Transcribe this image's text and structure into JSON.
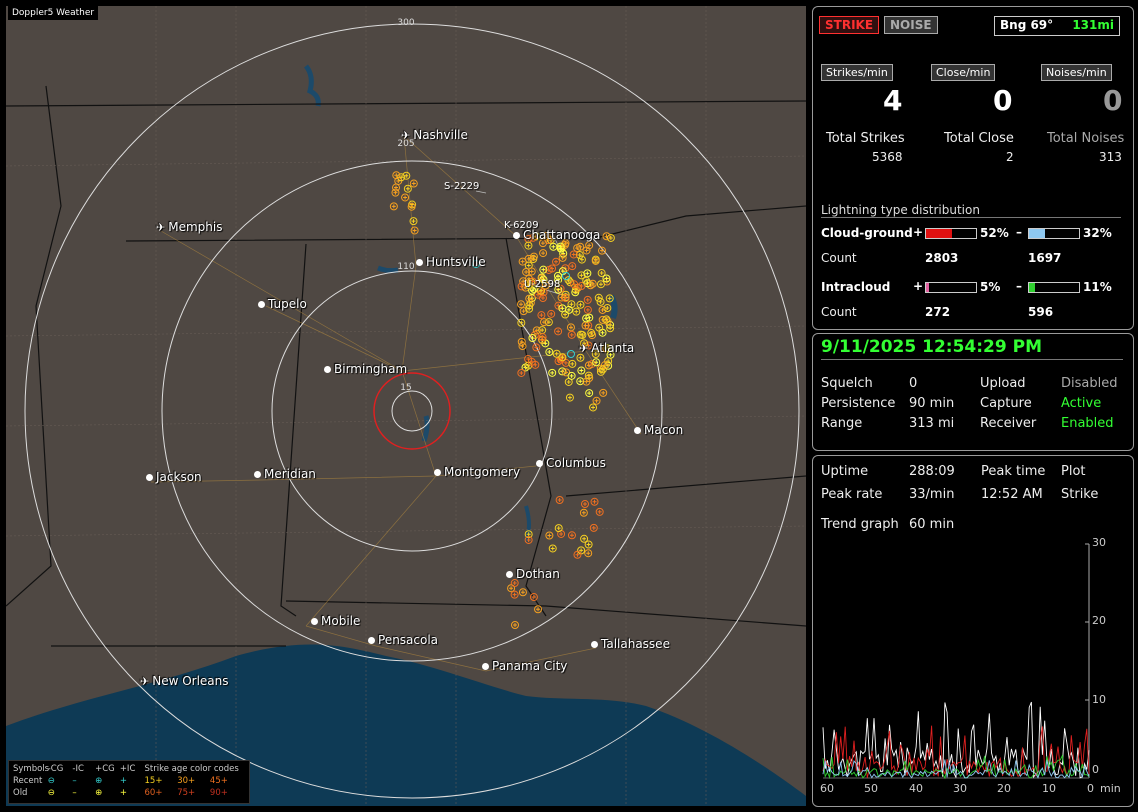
{
  "map": {
    "tag": "Doppler5 Weather",
    "range_labels": [
      "300",
      "205",
      "110",
      "15"
    ],
    "cities": [
      {
        "name": "Nashville",
        "kind": "air"
      },
      {
        "name": "Memphis",
        "kind": "air"
      },
      {
        "name": "Chattanooga",
        "kind": "dot"
      },
      {
        "name": "Huntsville",
        "kind": "dot"
      },
      {
        "name": "Tupelo",
        "kind": "dot"
      },
      {
        "name": "Birmingham",
        "kind": "dot"
      },
      {
        "name": "Atlanta",
        "kind": "air"
      },
      {
        "name": "Macon",
        "kind": "dot"
      },
      {
        "name": "Jackson",
        "kind": "dot"
      },
      {
        "name": "Meridian",
        "kind": "dot"
      },
      {
        "name": "Montgomery",
        "kind": "dot"
      },
      {
        "name": "Columbus",
        "kind": "dot"
      },
      {
        "name": "Dothan",
        "kind": "dot"
      },
      {
        "name": "Mobile",
        "kind": "dot"
      },
      {
        "name": "Pensacola",
        "kind": "dot"
      },
      {
        "name": "Tallahassee",
        "kind": "dot"
      },
      {
        "name": "Panama City",
        "kind": "dot"
      },
      {
        "name": "New Orleans",
        "kind": "air"
      }
    ],
    "storm_labels": [
      "S-2229",
      "K-6209",
      "U-2598"
    ],
    "legend": {
      "row1": [
        "Symbols",
        "-CG",
        "-IC",
        "+CG",
        "+IC",
        "Strike age color codes"
      ],
      "row2": [
        "Recent",
        "⊖",
        "–",
        "⊕",
        "+",
        "15+",
        "30+",
        "45+"
      ],
      "row3": [
        "Old",
        "⊖",
        "–",
        "⊕",
        "+",
        "60+",
        "75+",
        "90+"
      ]
    }
  },
  "status": {
    "strike_btn": "STRIKE",
    "noise_btn": "NOISE",
    "bearing": "Bng 69°",
    "distance": "131mi",
    "headers": [
      "Strikes/min",
      "Close/min",
      "Noises/min"
    ],
    "rates": [
      "4",
      "0",
      "0"
    ],
    "totals_labels": [
      "Total Strikes",
      "Total Close",
      "Total Noises"
    ],
    "totals": [
      "5368",
      "2",
      "313"
    ],
    "dist_title": "Lightning type distribution",
    "cg_label": "Cloud-ground",
    "cg_pos_pct": "52%",
    "cg_neg_pct": "32%",
    "count_label": "Count",
    "cg_pos_count": "2803",
    "cg_neg_count": "1697",
    "ic_label": "Intracloud",
    "ic_pos_pct": "5%",
    "ic_neg_pct": "11%",
    "ic_pos_count": "272",
    "ic_neg_count": "596",
    "plus": "+",
    "minus": "–",
    "bar_levels": {
      "cg_pos": 0.52,
      "cg_neg": 0.32,
      "ic_pos": 0.05,
      "ic_neg": 0.11
    }
  },
  "settings": {
    "datetime": "9/11/2025 12:54:29 PM",
    "squelch_label": "Squelch",
    "squelch": "0",
    "persistence_label": "Persistence",
    "persistence": "90 min",
    "range_label": "Range",
    "range": "313 mi",
    "upload_label": "Upload",
    "upload": "Disabled",
    "capture_label": "Capture",
    "capture": "Active",
    "receiver_label": "Receiver",
    "receiver": "Enabled"
  },
  "trend": {
    "uptime_label": "Uptime",
    "uptime": "288:09",
    "peak_time_label": "Peak time",
    "peak_time": "12:52 AM",
    "plot_label": "Plot",
    "plot": "Strike",
    "peak_rate_label": "Peak rate",
    "peak_rate": "33/min",
    "trend_label": "Trend graph",
    "trend": "60 min",
    "y_ticks": [
      "30",
      "20",
      "10",
      "0"
    ],
    "x_ticks": [
      "60",
      "50",
      "40",
      "30",
      "20",
      "10",
      "0"
    ],
    "x_unit": "min"
  },
  "colors": {
    "accent_green": "#33ff33",
    "strike_red": "#ff3030",
    "ring_white": "#dddddd",
    "water": "#0e3a55",
    "land": "#4f4843"
  }
}
